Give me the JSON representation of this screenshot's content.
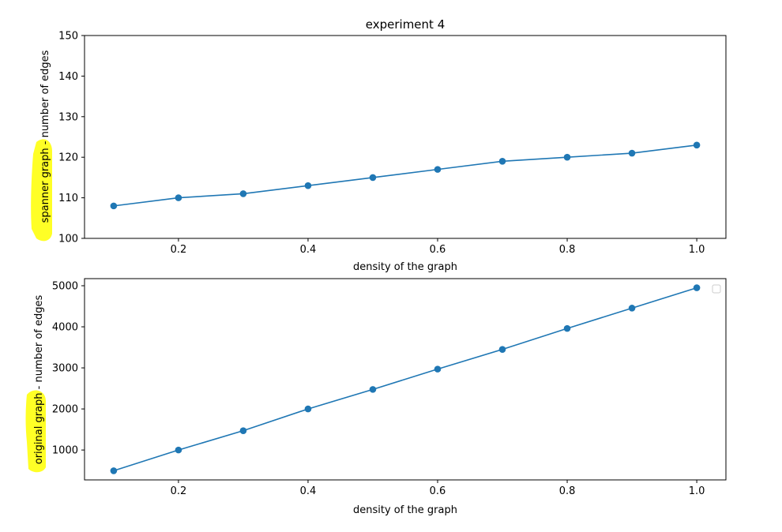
{
  "chart_data": [
    {
      "type": "line",
      "title": "experiment 4",
      "xlabel": "density of the graph",
      "ylabel": "spanner graph - number of edges",
      "highlighted_text": "spanner graph",
      "x": [
        0.1,
        0.2,
        0.3,
        0.4,
        0.5,
        0.6,
        0.7,
        0.8,
        0.9,
        1.0
      ],
      "series": [
        {
          "values": [
            108,
            110,
            111,
            113,
            115,
            117,
            119,
            120,
            121,
            123
          ]
        }
      ],
      "xlim": [
        0.055,
        1.045
      ],
      "ylim": [
        100,
        150
      ],
      "xticks": [
        "0.2",
        "0.4",
        "0.6",
        "0.8",
        "1.0"
      ],
      "yticks": [
        "100",
        "110",
        "120",
        "130",
        "140",
        "150"
      ],
      "grid": false,
      "color": "#1f77b4"
    },
    {
      "type": "line",
      "title": "",
      "xlabel": "density of the graph",
      "ylabel": "original graph - number of edges",
      "highlighted_text": "original graph",
      "x": [
        0.1,
        0.2,
        0.3,
        0.4,
        0.5,
        0.6,
        0.7,
        0.8,
        0.9,
        1.0
      ],
      "series": [
        {
          "values": [
            495,
            1000,
            1470,
            2000,
            2475,
            2970,
            3450,
            3960,
            4455,
            4950
          ]
        }
      ],
      "xlim": [
        0.055,
        1.045
      ],
      "ylim": [
        272,
        5173
      ],
      "xticks": [
        "0.2",
        "0.4",
        "0.6",
        "0.8",
        "1.0"
      ],
      "yticks": [
        "1000",
        "2000",
        "3000",
        "4000",
        "5000"
      ],
      "grid": false,
      "legend": "empty box, top-right",
      "color": "#1f77b4"
    }
  ]
}
